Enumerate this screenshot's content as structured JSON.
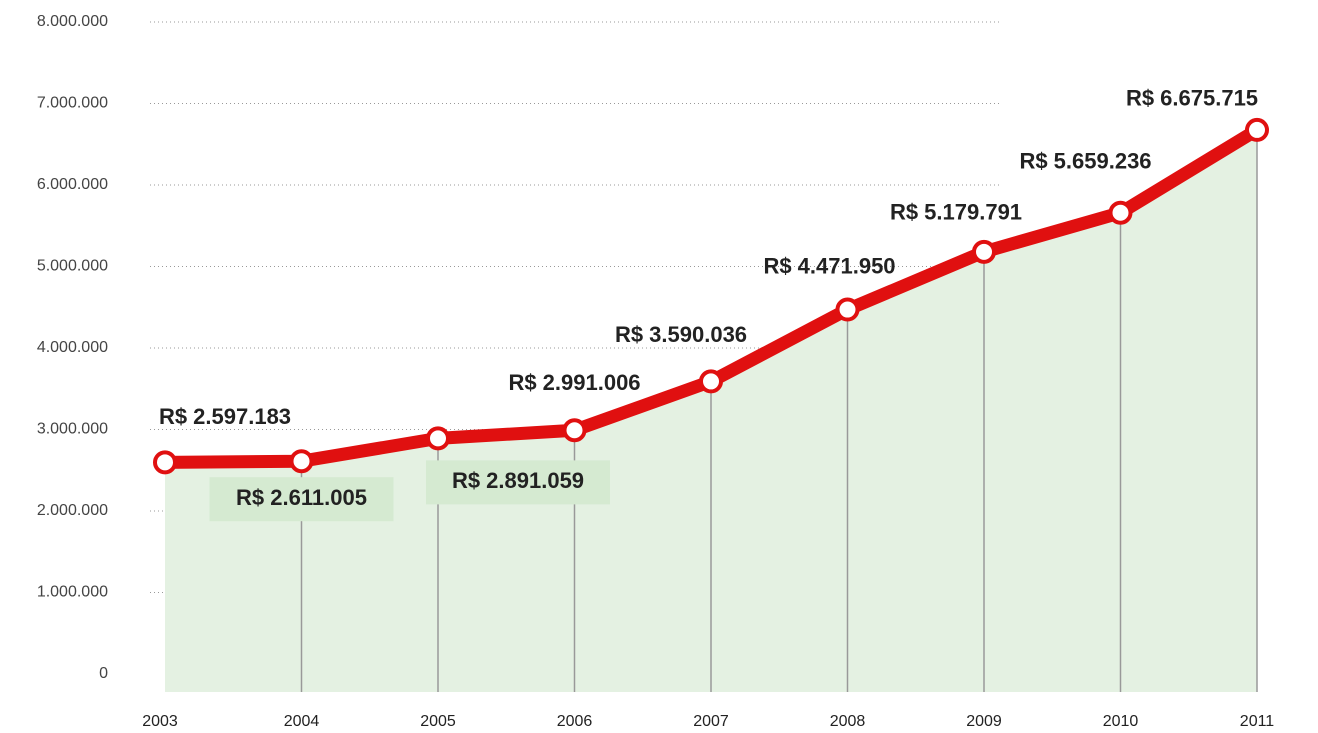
{
  "chart_data": {
    "type": "line",
    "categories": [
      "2003",
      "2004",
      "2005",
      "2006",
      "2007",
      "2008",
      "2009",
      "2010",
      "2011"
    ],
    "values": [
      2597183,
      2611005,
      2891059,
      2991006,
      3590036,
      4471950,
      5179791,
      5659236,
      6675715
    ],
    "value_labels": [
      "R$ 2.597.183",
      "R$ 2.611.005",
      "R$ 2.891.059",
      "R$ 2.991.006",
      "R$ 3.590.036",
      "R$ 4.471.950",
      "R$ 5.179.791",
      "R$ 5.659.236",
      "R$ 6.675.715"
    ],
    "color": "#e01010",
    "ylim": [
      0,
      8000000
    ],
    "yticks": [
      0,
      {
        "value": 1000000,
        "label": "1.000.000"
      },
      {
        "value": 2000000,
        "label": "2.000.000"
      },
      {
        "value": 3000000,
        "label": "3.000.000"
      },
      {
        "value": 4000000,
        "label": "4.000.000"
      },
      {
        "value": 5000000,
        "label": "5.000.000"
      },
      {
        "value": 6000000,
        "label": "6.000.000"
      },
      {
        "value": 7000000,
        "label": "7.000.000"
      },
      {
        "value": 8000000,
        "label": "8.000.000"
      }
    ],
    "grid": true
  }
}
